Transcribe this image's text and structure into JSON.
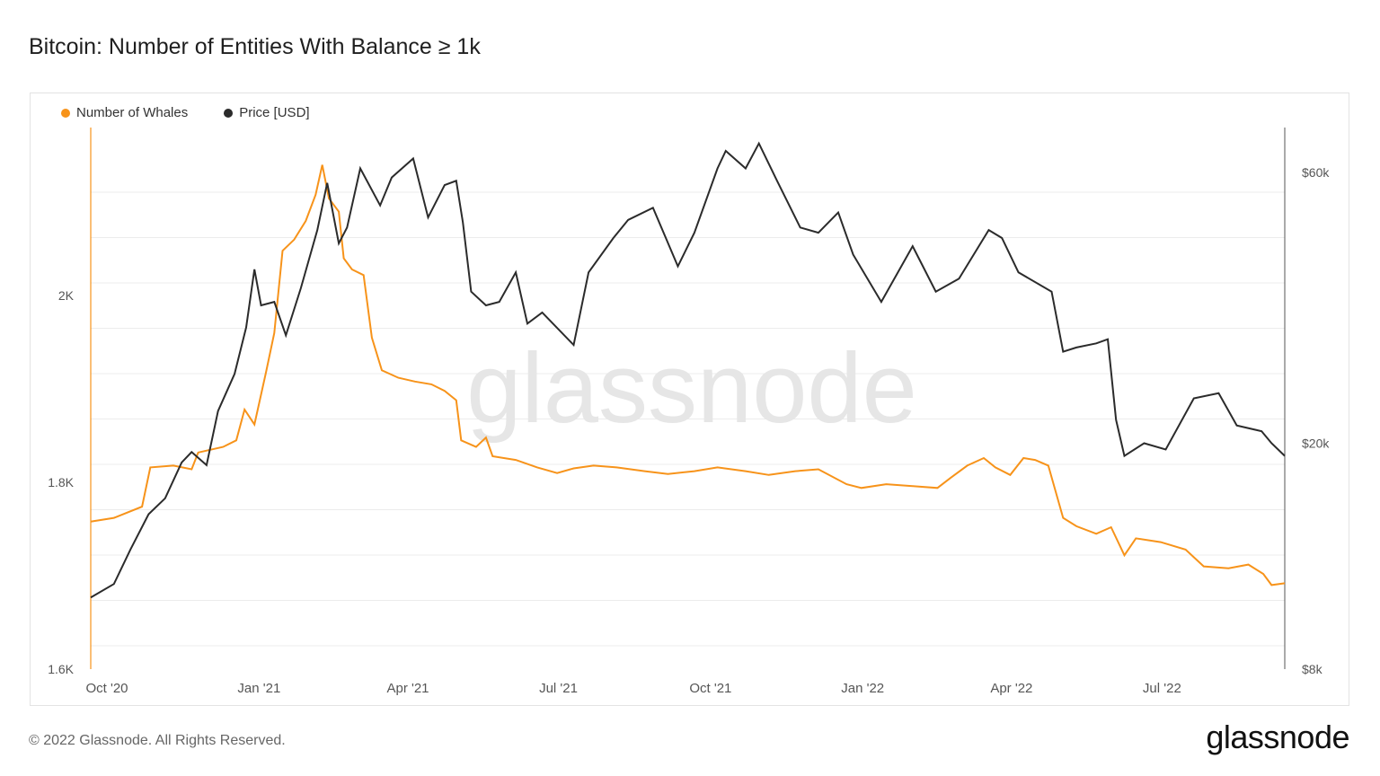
{
  "title": "Bitcoin: Number of Entities With Balance ≥ 1k",
  "footer": {
    "copyright": "© 2022 Glassnode. All Rights Reserved.",
    "brand": "glassnode"
  },
  "watermark": "glassnode",
  "colors": {
    "whales": "#f7931a",
    "price": "#2b2b2b",
    "grid": "#ececec",
    "axis_text": "#555555"
  },
  "chart_data": {
    "type": "line",
    "grid": true,
    "legend_position": "top-left",
    "x_ticks": [
      "Oct '20",
      "Jan '21",
      "Apr '21",
      "Jul '21",
      "Oct '21",
      "Jan '22",
      "Apr '22",
      "Jul '22"
    ],
    "x_range": [
      "2020-10-01",
      "2022-09-23"
    ],
    "y_left": {
      "label": "",
      "ticks": [
        "1.6K",
        "1.8K",
        "2K"
      ],
      "tick_values": [
        1600,
        1800,
        2000
      ],
      "range": [
        1600,
        2180
      ]
    },
    "y_right": {
      "label": "",
      "scale": "log",
      "ticks": [
        "$8k",
        "$20k",
        "$60k"
      ],
      "tick_values": [
        8000,
        20000,
        60000
      ],
      "range": [
        8000,
        72000
      ]
    },
    "series": [
      {
        "name": "Number of Whales",
        "axis": "left",
        "points": [
          [
            "2020-10-01",
            1758
          ],
          [
            "2020-10-15",
            1762
          ],
          [
            "2020-11-01",
            1774
          ],
          [
            "2020-11-06",
            1816
          ],
          [
            "2020-11-20",
            1818
          ],
          [
            "2020-12-01",
            1814
          ],
          [
            "2020-12-05",
            1832
          ],
          [
            "2020-12-20",
            1838
          ],
          [
            "2020-12-28",
            1845
          ],
          [
            "2021-01-02",
            1878
          ],
          [
            "2021-01-08",
            1862
          ],
          [
            "2021-01-15",
            1918
          ],
          [
            "2021-01-20",
            1960
          ],
          [
            "2021-01-25",
            2048
          ],
          [
            "2021-02-01",
            2060
          ],
          [
            "2021-02-08",
            2080
          ],
          [
            "2021-02-14",
            2108
          ],
          [
            "2021-02-18",
            2140
          ],
          [
            "2021-02-22",
            2104
          ],
          [
            "2021-02-28",
            2090
          ],
          [
            "2021-03-03",
            2040
          ],
          [
            "2021-03-08",
            2028
          ],
          [
            "2021-03-15",
            2022
          ],
          [
            "2021-03-20",
            1955
          ],
          [
            "2021-03-26",
            1920
          ],
          [
            "2021-04-05",
            1912
          ],
          [
            "2021-04-15",
            1908
          ],
          [
            "2021-04-25",
            1905
          ],
          [
            "2021-05-03",
            1898
          ],
          [
            "2021-05-10",
            1888
          ],
          [
            "2021-05-13",
            1845
          ],
          [
            "2021-05-22",
            1838
          ],
          [
            "2021-05-28",
            1848
          ],
          [
            "2021-06-01",
            1828
          ],
          [
            "2021-06-15",
            1824
          ],
          [
            "2021-06-28",
            1816
          ],
          [
            "2021-07-10",
            1810
          ],
          [
            "2021-07-20",
            1815
          ],
          [
            "2021-08-01",
            1818
          ],
          [
            "2021-08-15",
            1816
          ],
          [
            "2021-09-01",
            1812
          ],
          [
            "2021-09-15",
            1809
          ],
          [
            "2021-10-01",
            1812
          ],
          [
            "2021-10-15",
            1816
          ],
          [
            "2021-11-01",
            1812
          ],
          [
            "2021-11-15",
            1808
          ],
          [
            "2021-12-01",
            1812
          ],
          [
            "2021-12-15",
            1814
          ],
          [
            "2022-01-01",
            1798
          ],
          [
            "2022-01-10",
            1794
          ],
          [
            "2022-01-25",
            1798
          ],
          [
            "2022-02-10",
            1796
          ],
          [
            "2022-02-25",
            1794
          ],
          [
            "2022-03-05",
            1805
          ],
          [
            "2022-03-15",
            1818
          ],
          [
            "2022-03-25",
            1826
          ],
          [
            "2022-04-01",
            1816
          ],
          [
            "2022-04-10",
            1808
          ],
          [
            "2022-04-18",
            1826
          ],
          [
            "2022-04-25",
            1824
          ],
          [
            "2022-05-03",
            1818
          ],
          [
            "2022-05-12",
            1762
          ],
          [
            "2022-05-20",
            1753
          ],
          [
            "2022-06-01",
            1745
          ],
          [
            "2022-06-10",
            1752
          ],
          [
            "2022-06-18",
            1722
          ],
          [
            "2022-06-25",
            1740
          ],
          [
            "2022-07-10",
            1736
          ],
          [
            "2022-07-25",
            1728
          ],
          [
            "2022-08-05",
            1710
          ],
          [
            "2022-08-20",
            1708
          ],
          [
            "2022-09-01",
            1712
          ],
          [
            "2022-09-10",
            1702
          ],
          [
            "2022-09-15",
            1690
          ],
          [
            "2022-09-23",
            1692
          ]
        ]
      },
      {
        "name": "Price [USD]",
        "axis": "right",
        "points": [
          [
            "2020-10-01",
            10700
          ],
          [
            "2020-10-15",
            11300
          ],
          [
            "2020-10-25",
            13000
          ],
          [
            "2020-11-05",
            15000
          ],
          [
            "2020-11-15",
            16000
          ],
          [
            "2020-11-25",
            18500
          ],
          [
            "2020-12-01",
            19300
          ],
          [
            "2020-12-10",
            18300
          ],
          [
            "2020-12-17",
            22800
          ],
          [
            "2020-12-27",
            26500
          ],
          [
            "2021-01-03",
            32000
          ],
          [
            "2021-01-08",
            40500
          ],
          [
            "2021-01-12",
            35000
          ],
          [
            "2021-01-20",
            35500
          ],
          [
            "2021-01-27",
            31000
          ],
          [
            "2021-02-05",
            37500
          ],
          [
            "2021-02-15",
            47500
          ],
          [
            "2021-02-21",
            57500
          ],
          [
            "2021-02-28",
            45000
          ],
          [
            "2021-03-05",
            48000
          ],
          [
            "2021-03-13",
            61000
          ],
          [
            "2021-03-25",
            52500
          ],
          [
            "2021-04-01",
            58800
          ],
          [
            "2021-04-14",
            63500
          ],
          [
            "2021-04-23",
            50000
          ],
          [
            "2021-05-03",
            57000
          ],
          [
            "2021-05-10",
            58000
          ],
          [
            "2021-05-14",
            49000
          ],
          [
            "2021-05-19",
            37000
          ],
          [
            "2021-05-28",
            35000
          ],
          [
            "2021-06-05",
            35500
          ],
          [
            "2021-06-15",
            40000
          ],
          [
            "2021-06-22",
            32500
          ],
          [
            "2021-07-01",
            34000
          ],
          [
            "2021-07-20",
            29800
          ],
          [
            "2021-07-29",
            40000
          ],
          [
            "2021-08-13",
            46000
          ],
          [
            "2021-08-22",
            49500
          ],
          [
            "2021-09-06",
            52000
          ],
          [
            "2021-09-21",
            41000
          ],
          [
            "2021-10-01",
            47000
          ],
          [
            "2021-10-15",
            61000
          ],
          [
            "2021-10-20",
            65500
          ],
          [
            "2021-11-01",
            61000
          ],
          [
            "2021-11-09",
            67500
          ],
          [
            "2021-11-20",
            58000
          ],
          [
            "2021-12-04",
            48000
          ],
          [
            "2021-12-15",
            47000
          ],
          [
            "2021-12-27",
            51000
          ],
          [
            "2022-01-05",
            43000
          ],
          [
            "2022-01-22",
            35500
          ],
          [
            "2022-02-10",
            44500
          ],
          [
            "2022-02-24",
            37000
          ],
          [
            "2022-03-10",
            39000
          ],
          [
            "2022-03-28",
            47500
          ],
          [
            "2022-04-05",
            46000
          ],
          [
            "2022-04-15",
            40000
          ],
          [
            "2022-05-05",
            37000
          ],
          [
            "2022-05-12",
            29000
          ],
          [
            "2022-05-20",
            29500
          ],
          [
            "2022-06-01",
            30000
          ],
          [
            "2022-06-08",
            30500
          ],
          [
            "2022-06-13",
            22000
          ],
          [
            "2022-06-18",
            19000
          ],
          [
            "2022-06-30",
            20000
          ],
          [
            "2022-07-13",
            19500
          ],
          [
            "2022-07-30",
            24000
          ],
          [
            "2022-08-14",
            24500
          ],
          [
            "2022-08-25",
            21500
          ],
          [
            "2022-09-09",
            21000
          ],
          [
            "2022-09-15",
            20000
          ],
          [
            "2022-09-23",
            19000
          ]
        ]
      }
    ]
  }
}
